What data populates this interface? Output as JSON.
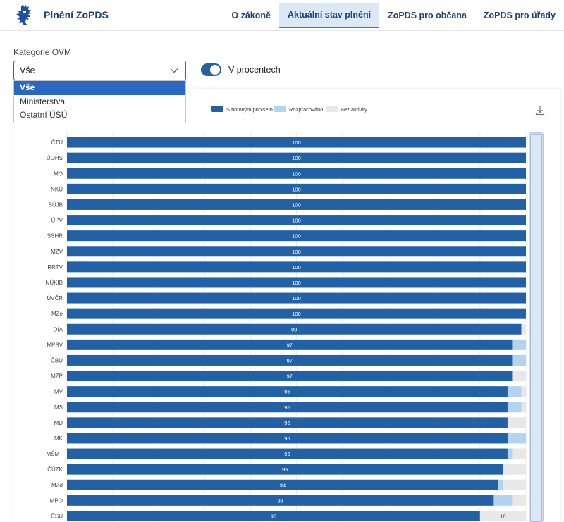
{
  "header": {
    "app_title": "Plnění ZoPDS",
    "nav": [
      {
        "label": "O zákoně",
        "active": false
      },
      {
        "label": "Aktuální stav plnění",
        "active": true
      },
      {
        "label": "ZoPDS pro občana",
        "active": false
      },
      {
        "label": "ZoPDS pro úřady",
        "active": false
      }
    ]
  },
  "filter": {
    "label": "Kategorie OVM",
    "value": "Vše",
    "options": [
      "Vše",
      "Ministerstva",
      "Ostatní ÚSÚ"
    ]
  },
  "toggle": {
    "label": "V procentech",
    "on": true
  },
  "chart_data": {
    "type": "bar",
    "orientation": "horizontal",
    "stacked": true,
    "legend_position": "top",
    "grid": true,
    "xlim": [
      0,
      100
    ],
    "categories": [
      "ČTÚ",
      "ÚOHS",
      "MO",
      "NKÚ",
      "SÚJB",
      "ÚPV",
      "SSHR",
      "MZV",
      "RRTV",
      "NÚKIB",
      "ÚVČR",
      "MZe",
      "DIA",
      "MPSV",
      "ČBÚ",
      "MŽP",
      "MV",
      "MS",
      "MD",
      "MK",
      "MŠMT",
      "ČÚZK",
      "MZd",
      "MPO",
      "ČSÚ"
    ],
    "series": [
      {
        "name": "S hotovým popisem",
        "color": "#2361a6",
        "labels": true,
        "values": [
          100,
          100,
          100,
          100,
          100,
          100,
          100,
          100,
          100,
          100,
          100,
          100,
          99,
          97,
          97,
          97,
          96,
          96,
          96,
          96,
          96,
          95,
          94,
          93,
          90
        ]
      },
      {
        "name": "Rozpracováno",
        "color": "#b3d4f0",
        "labels": false,
        "values": [
          0,
          0,
          0,
          0,
          0,
          0,
          0,
          0,
          0,
          0,
          0,
          0,
          0,
          3,
          3,
          0,
          3,
          3,
          0,
          4,
          1,
          0,
          1,
          4,
          0
        ]
      },
      {
        "name": "Bez aktivity",
        "color": "#e8e8e8",
        "labels": true,
        "values": [
          0,
          0,
          0,
          0,
          0,
          0,
          0,
          0,
          0,
          0,
          0,
          0,
          1,
          0,
          0,
          3,
          1,
          1,
          4,
          0,
          3,
          5,
          5,
          3,
          10
        ]
      }
    ]
  }
}
